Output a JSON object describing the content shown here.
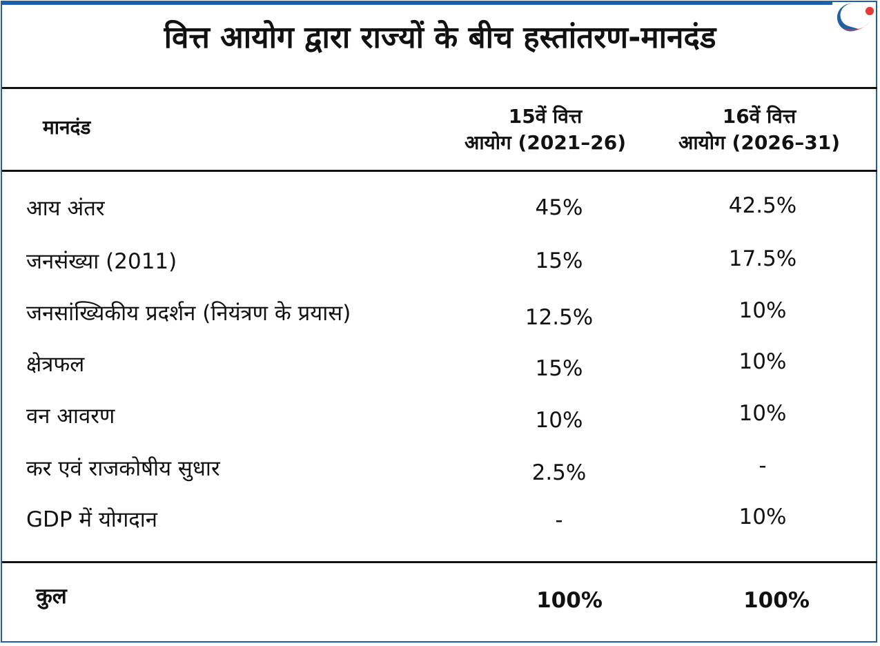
{
  "title": "वित्त आयोग द्वारा राज्यों के बीच हस्तांतरण-मानदंड",
  "header": {
    "col1": "मानदंड",
    "col2_line1": "15वें वित्त",
    "col2_line2": "आयोग (2021–26)",
    "col3_line1": "16वें वित्त",
    "col3_line2": "आयोग (2026–31)"
  },
  "rows": [
    {
      "criterion": "आय अंतर",
      "fc15": "45%",
      "fc16": "42.5%"
    },
    {
      "criterion": "जनसंख्या (2011)",
      "fc15": "15%",
      "fc16": "17.5%"
    },
    {
      "criterion": "जनसांख्यिकीय प्रदर्शन (नियंत्रण के प्रयास)",
      "fc15": "12.5%",
      "fc16": "10%"
    },
    {
      "criterion": "क्षेत्रफल",
      "fc15": "15%",
      "fc16": "10%"
    },
    {
      "criterion": "वन आवरण",
      "fc15": "10%",
      "fc16": "10%"
    },
    {
      "criterion": "कर एवं राजकोषीय सुधार",
      "fc15": "2.5%",
      "fc16": "-"
    },
    {
      "criterion": "GDP में योगदान",
      "fc15": "-",
      "fc16": "10%"
    }
  ],
  "total": {
    "label": "कुल",
    "fc15": "100%",
    "fc16": "100%"
  },
  "colors": {
    "frame": "#1f5fa6",
    "logo_red": "#e53935"
  }
}
